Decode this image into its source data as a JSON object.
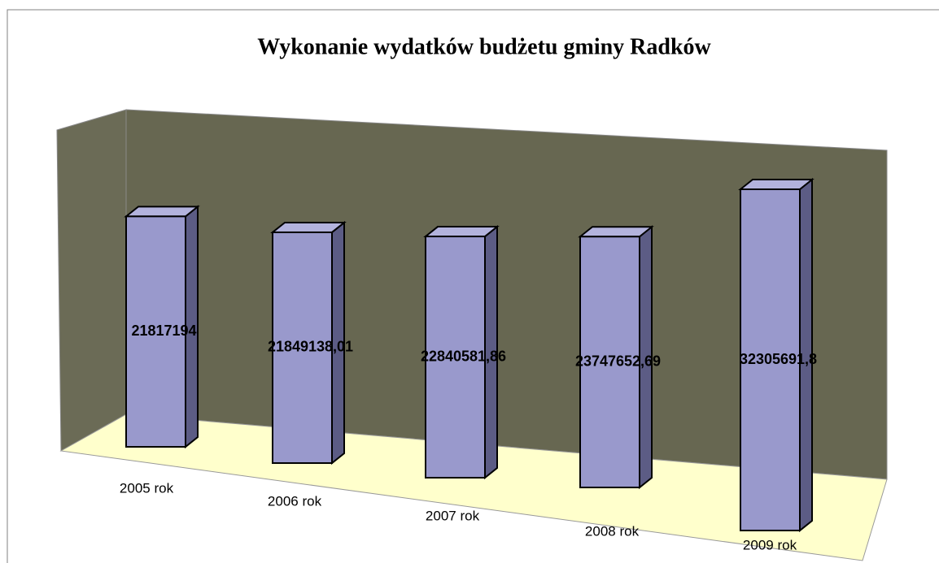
{
  "chart_data": {
    "type": "bar3d",
    "title": "Wykonanie wydatków budżetu gminy Radków",
    "categories": [
      "2005 rok",
      "2006 rok",
      "2007 rok",
      "2008 rok",
      "2009 rok"
    ],
    "values": [
      21817194,
      21849138.01,
      22840581.86,
      23747652.69,
      32305691.8
    ],
    "value_labels": [
      "21817194",
      "21849138,01",
      "22840581,86",
      "23747652,69",
      "32305691,8"
    ],
    "color": "#9999cc"
  }
}
